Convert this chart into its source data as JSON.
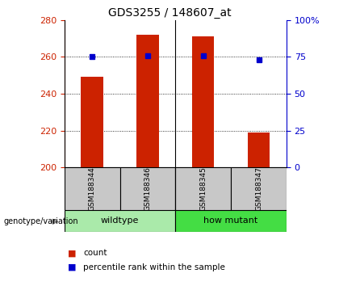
{
  "title": "GDS3255 / 148607_at",
  "samples": [
    "GSM188344",
    "GSM188346",
    "GSM188345",
    "GSM188347"
  ],
  "counts": [
    249,
    272,
    271,
    219
  ],
  "percentile_ranks": [
    75,
    76,
    76,
    73
  ],
  "ylim_left": [
    200,
    280
  ],
  "ylim_right": [
    0,
    100
  ],
  "yticks_left": [
    200,
    220,
    240,
    260,
    280
  ],
  "yticks_right": [
    0,
    25,
    50,
    75,
    100
  ],
  "bar_color": "#cc2200",
  "dot_color": "#0000cc",
  "bg_color": "#ffffff",
  "sample_label_bg": "#c8c8c8",
  "wildtype_color": "#aaeaaa",
  "mutant_color": "#44dd44",
  "left_axis_color": "#cc2200",
  "right_axis_color": "#0000cc",
  "bar_width": 0.4,
  "legend_count_label": "count",
  "legend_percentile_label": "percentile rank within the sample",
  "group_label": "genotype/variation",
  "title_fontsize": 10,
  "tick_fontsize": 8
}
